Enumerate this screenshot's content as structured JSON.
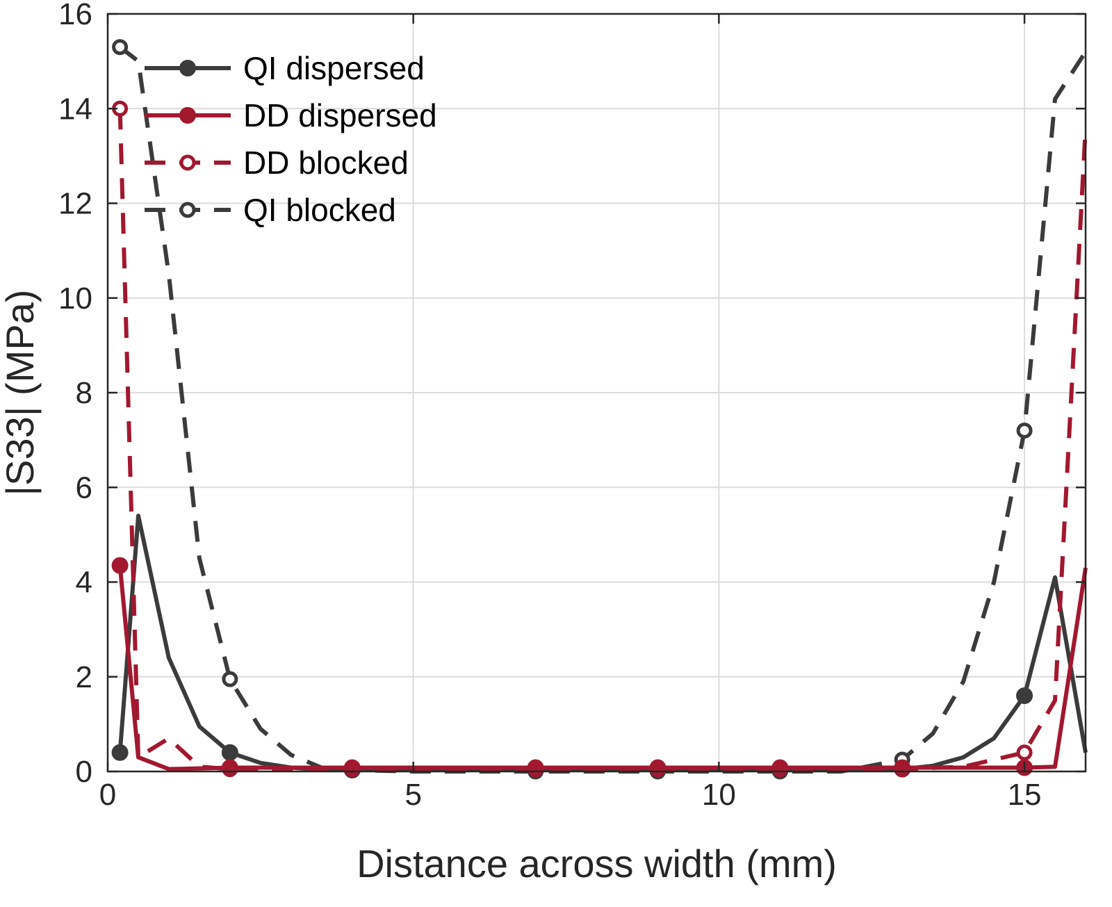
{
  "chart_data": {
    "type": "line",
    "xlabel": "Distance across width (mm)",
    "ylabel": "|S33| (MPa)",
    "xlim": [
      0,
      16
    ],
    "ylim": [
      0,
      16
    ],
    "xticks": [
      0,
      5,
      10,
      15
    ],
    "yticks": [
      0,
      2,
      4,
      6,
      8,
      10,
      12,
      14,
      16
    ],
    "grid": true,
    "legend_position": "top-left",
    "colors": {
      "dark": "#3b3b3b",
      "red": "#a2182f",
      "grid": "#dcdcdc",
      "axis": "#262626"
    },
    "series": [
      {
        "name": "QI dispersed",
        "color": "#3b3b3b",
        "dash": "solid",
        "marker": "filled",
        "legend_marker": "filled",
        "x": [
          0.2,
          0.5,
          1.0,
          1.5,
          2.0,
          2.5,
          3.0,
          3.5,
          4.0,
          5,
          6,
          7,
          8,
          9,
          10,
          11,
          12,
          13,
          13.5,
          14.0,
          14.5,
          15.0,
          15.5,
          16.0
        ],
        "y": [
          0.4,
          5.4,
          2.4,
          0.95,
          0.4,
          0.18,
          0.08,
          0.04,
          0.03,
          0.03,
          0.03,
          0.03,
          0.03,
          0.03,
          0.03,
          0.03,
          0.03,
          0.05,
          0.12,
          0.3,
          0.7,
          1.6,
          4.1,
          0.4
        ],
        "marker_x": [
          0.2,
          2.0,
          4.0,
          7.0,
          9.0,
          11.0,
          13.0,
          15.0
        ],
        "marker_y": [
          0.4,
          0.4,
          0.03,
          0.03,
          0.03,
          0.03,
          0.05,
          1.6
        ]
      },
      {
        "name": "DD dispersed",
        "color": "#a2182f",
        "dash": "solid",
        "marker": "filled",
        "legend_marker": "filled",
        "x": [
          0.2,
          0.5,
          1.0,
          2.0,
          4.0,
          7.0,
          9.0,
          11.0,
          13.0,
          15.0,
          15.5,
          16.0
        ],
        "y": [
          4.35,
          0.3,
          0.05,
          0.08,
          0.08,
          0.08,
          0.08,
          0.08,
          0.08,
          0.08,
          0.1,
          4.3
        ],
        "marker_x": [
          0.2,
          2.0,
          4.0,
          7.0,
          9.0,
          11.0,
          13.0,
          15.0
        ],
        "marker_y": [
          4.35,
          0.08,
          0.08,
          0.08,
          0.08,
          0.08,
          0.08,
          0.08
        ]
      },
      {
        "name": "DD blocked",
        "color": "#a2182f",
        "dash": "dashed",
        "marker": "open",
        "legend_marker": "open",
        "x": [
          0.2,
          0.5,
          1.0,
          1.5,
          2.0,
          4.0,
          7.0,
          9.0,
          11.0,
          13.0,
          14.0,
          15.0,
          15.5,
          16.0
        ],
        "y": [
          14.0,
          0.3,
          0.7,
          0.1,
          0.05,
          0.05,
          0.05,
          0.05,
          0.05,
          0.05,
          0.1,
          0.4,
          1.5,
          13.6
        ],
        "marker_x": [
          0.2,
          2.0,
          4.0,
          7.0,
          9.0,
          11.0,
          13.0,
          15.0
        ],
        "marker_y": [
          14.0,
          0.05,
          0.05,
          0.05,
          0.05,
          0.05,
          0.05,
          0.4
        ]
      },
      {
        "name": "QI blocked",
        "color": "#3b3b3b",
        "dash": "dashed",
        "marker": "open",
        "legend_marker": "open",
        "x": [
          0.2,
          0.5,
          1.0,
          1.5,
          2.0,
          2.5,
          3.0,
          3.5,
          4.0,
          5,
          6,
          7,
          8,
          9,
          10,
          11,
          12,
          13.0,
          13.5,
          14.0,
          14.5,
          15.0,
          15.5,
          16.0
        ],
        "y": [
          15.3,
          15.0,
          10.5,
          4.5,
          1.95,
          0.9,
          0.35,
          0.08,
          0.03,
          0.0,
          0.0,
          0.0,
          0.0,
          0.0,
          0.0,
          0.0,
          0.0,
          0.25,
          0.8,
          1.9,
          4.0,
          7.2,
          14.2,
          15.2
        ],
        "marker_x": [
          0.2,
          2.0,
          4.0,
          7.0,
          9.0,
          11.0,
          13.0,
          15.0
        ],
        "marker_y": [
          15.3,
          1.95,
          0.03,
          0.0,
          0.0,
          0.0,
          0.25,
          7.2
        ]
      }
    ]
  }
}
